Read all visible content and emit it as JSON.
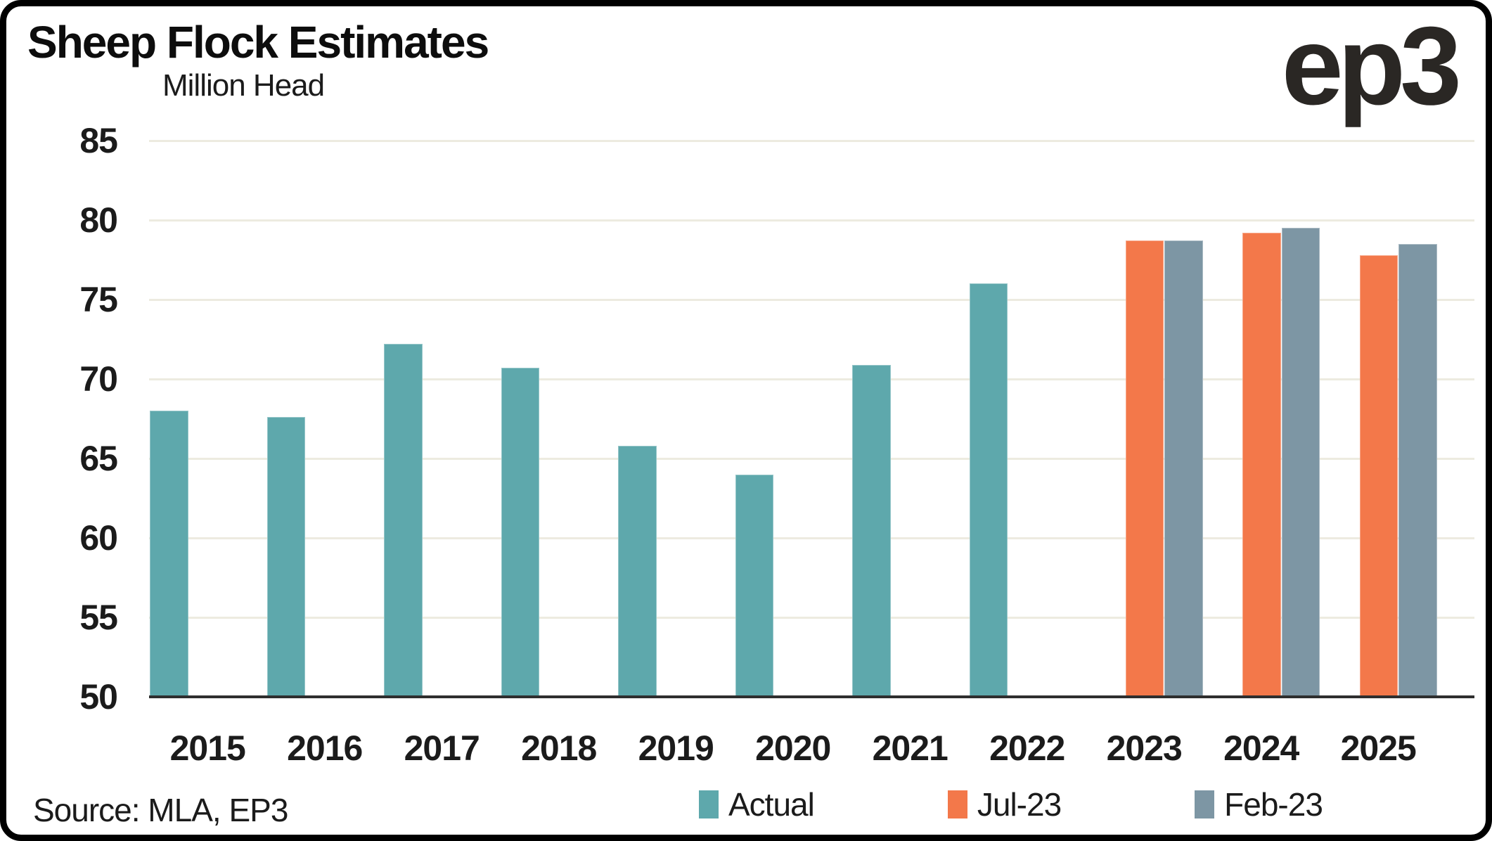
{
  "header": {
    "logo_text": "ep3"
  },
  "source": {
    "text": "Source: MLA, EP3"
  },
  "colors": {
    "actual": "#5EA8AC",
    "jul23": "#F3784A",
    "feb23": "#7D96A4",
    "gridline": "#EDEBE0",
    "axis": "#2E2E2E",
    "text": "#1B1B1B",
    "frame": "#000000"
  },
  "chart_data": {
    "type": "bar",
    "title": "Sheep Flock Estimates",
    "ylabel": "Million Head",
    "xlabel": "",
    "categories": [
      "2015",
      "2016",
      "2017",
      "2018",
      "2019",
      "2020",
      "2021",
      "2022",
      "2023",
      "2024",
      "2025"
    ],
    "series": [
      {
        "name": "Actual",
        "color": "#5EA8AC",
        "values": [
          68.0,
          67.6,
          72.2,
          70.7,
          65.8,
          64.0,
          70.9,
          76.0,
          null,
          null,
          null
        ]
      },
      {
        "name": "Jul-23",
        "color": "#F3784A",
        "values": [
          null,
          null,
          null,
          null,
          null,
          null,
          null,
          null,
          78.7,
          79.2,
          77.8
        ]
      },
      {
        "name": "Feb-23",
        "color": "#7D96A4",
        "values": [
          null,
          null,
          null,
          null,
          null,
          null,
          null,
          null,
          78.7,
          79.5,
          78.5
        ]
      }
    ],
    "ylim": [
      50,
      85
    ],
    "yticks": [
      50,
      55,
      60,
      65,
      70,
      75,
      80,
      85
    ],
    "grid": true,
    "legend_position": "bottom"
  }
}
